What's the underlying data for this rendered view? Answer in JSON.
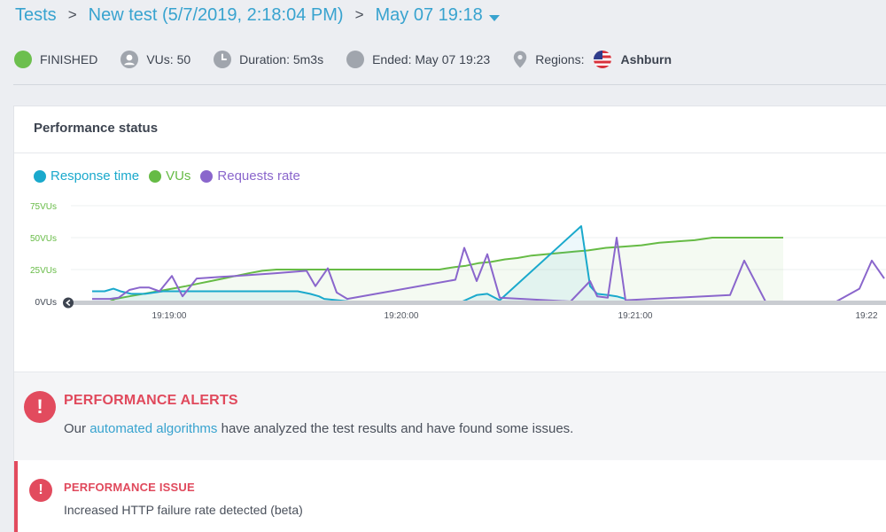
{
  "breadcrumb": {
    "root": "Tests",
    "test": "New test (5/7/2019, 2:18:04 PM)",
    "run": "May 07 19:18",
    "separator": ">"
  },
  "status": {
    "state": "FINISHED",
    "vus": "VUs: 50",
    "duration": "Duration: 5m3s",
    "ended": "Ended: May 07 19:23",
    "regions_label": "Regions:",
    "region": "Ashburn"
  },
  "performance": {
    "title": "Performance status",
    "legend": [
      {
        "label": "Response time",
        "color": "#1aa9cc"
      },
      {
        "label": "VUs",
        "color": "#66bb45"
      },
      {
        "label": "Requests rate",
        "color": "#8a66cc"
      }
    ]
  },
  "chart_data": {
    "type": "line",
    "y_labels": [
      "75VUs",
      "50VUs",
      "25VUs",
      "0VUs"
    ],
    "ylim": [
      0,
      75
    ],
    "x_ticks": [
      "19:19:00",
      "19:20:00",
      "19:21:00",
      "19:22"
    ],
    "grid": true,
    "series": [
      {
        "name": "VUs",
        "color": "#66bb45",
        "points": [
          [
            0,
            0
          ],
          [
            20,
            0
          ],
          [
            26,
            2
          ],
          [
            42,
            4
          ],
          [
            58,
            6
          ],
          [
            74,
            8
          ],
          [
            90,
            10
          ],
          [
            106,
            12
          ],
          [
            120,
            14
          ],
          [
            134,
            16
          ],
          [
            148,
            18
          ],
          [
            162,
            20
          ],
          [
            176,
            22
          ],
          [
            192,
            24
          ],
          [
            208,
            25
          ],
          [
            350,
            25
          ],
          [
            392,
            25
          ],
          [
            400,
            26
          ],
          [
            410,
            27
          ],
          [
            422,
            28
          ],
          [
            436,
            30
          ],
          [
            450,
            31
          ],
          [
            466,
            33
          ],
          [
            480,
            34
          ],
          [
            496,
            36
          ],
          [
            512,
            37
          ],
          [
            528,
            38
          ],
          [
            544,
            39
          ],
          [
            560,
            40
          ],
          [
            580,
            42
          ],
          [
            600,
            43
          ],
          [
            620,
            44
          ],
          [
            640,
            46
          ],
          [
            660,
            47
          ],
          [
            680,
            48
          ],
          [
            700,
            50
          ],
          [
            780,
            50
          ]
        ]
      },
      {
        "name": "Response time",
        "color": "#1aa9cc",
        "points": [
          [
            0,
            8
          ],
          [
            14,
            8
          ],
          [
            24,
            10
          ],
          [
            32,
            8
          ],
          [
            44,
            6
          ],
          [
            60,
            6
          ],
          [
            80,
            8
          ],
          [
            120,
            8
          ],
          [
            180,
            8
          ],
          [
            232,
            8
          ],
          [
            246,
            6
          ],
          [
            256,
            4
          ],
          [
            262,
            2
          ],
          [
            290,
            0
          ],
          [
            380,
            0
          ],
          [
            418,
            0
          ],
          [
            434,
            5
          ],
          [
            446,
            6
          ],
          [
            460,
            1
          ],
          [
            552,
            59
          ],
          [
            562,
            12
          ],
          [
            570,
            6
          ],
          [
            582,
            5
          ],
          [
            592,
            4
          ],
          [
            602,
            2
          ]
        ]
      },
      {
        "name": "Requests rate",
        "color": "#8a66cc",
        "points": [
          [
            0,
            2
          ],
          [
            20,
            2
          ],
          [
            30,
            3
          ],
          [
            42,
            9
          ],
          [
            54,
            11
          ],
          [
            64,
            11
          ],
          [
            76,
            8
          ],
          [
            90,
            20
          ],
          [
            102,
            4
          ],
          [
            118,
            18
          ],
          [
            162,
            20
          ],
          [
            206,
            22
          ],
          [
            242,
            24
          ],
          [
            252,
            12
          ],
          [
            266,
            26
          ],
          [
            276,
            7
          ],
          [
            288,
            2
          ],
          [
            410,
            17
          ],
          [
            420,
            42
          ],
          [
            434,
            16
          ],
          [
            446,
            37
          ],
          [
            460,
            3
          ],
          [
            540,
            0
          ],
          [
            562,
            16
          ],
          [
            570,
            4
          ],
          [
            582,
            3
          ],
          [
            592,
            50
          ],
          [
            602,
            1
          ],
          [
            720,
            5
          ],
          [
            736,
            32
          ],
          [
            760,
            0
          ],
          [
            840,
            0
          ],
          [
            866,
            10
          ],
          [
            880,
            32
          ],
          [
            894,
            18
          ]
        ]
      }
    ]
  },
  "alerts": {
    "icon": "!",
    "title": "PERFORMANCE ALERTS",
    "text_before": "Our ",
    "link": "automated algorithms",
    "text_after": " have analyzed the test results and have found some issues."
  },
  "issue": {
    "icon": "!",
    "title": "PERFORMANCE ISSUE",
    "text": "Increased HTTP failure rate detected (beta)"
  }
}
